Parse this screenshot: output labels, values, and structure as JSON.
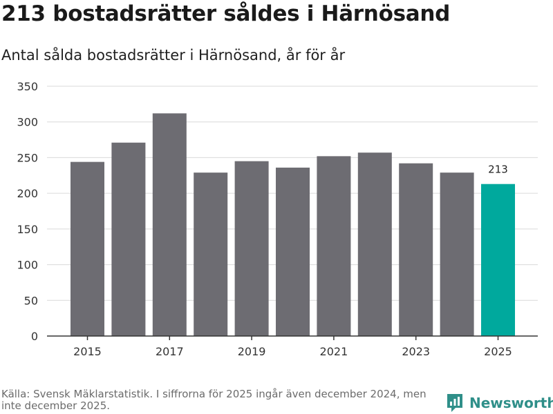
{
  "title": "213 bostadsrätter såldes i Härnösand",
  "subtitle": "Antal sålda bostadsrätter i Härnösand, år för år",
  "footer": {
    "source": "Källa: Svensk Mäklarstatistik. I siffrorna för 2025 ingår även december 2024, men inte december 2025."
  },
  "brand": {
    "name": "Newsworthy",
    "color": "#2f8f89"
  },
  "colors": {
    "bar": "#6d6c72",
    "highlight": "#00a99d",
    "grid": "#d9d9d9",
    "axis": "#333333"
  },
  "chart_data": {
    "type": "bar",
    "title": "Antal sålda bostadsrätter i Härnösand, år för år",
    "xlabel": "",
    "ylabel": "",
    "categories": [
      "2015",
      "2016",
      "2017",
      "2018",
      "2019",
      "2020",
      "2021",
      "2022",
      "2023",
      "2024",
      "2025"
    ],
    "values": [
      244,
      271,
      312,
      229,
      245,
      236,
      252,
      257,
      242,
      229,
      213
    ],
    "ylim": [
      0,
      350
    ],
    "yticks": [
      0,
      50,
      100,
      150,
      200,
      250,
      300,
      350
    ],
    "xtick_labels": [
      "2015",
      "2017",
      "2019",
      "2021",
      "2023",
      "2025"
    ],
    "highlight": {
      "category": "2025",
      "label": "213"
    },
    "grid": true
  }
}
